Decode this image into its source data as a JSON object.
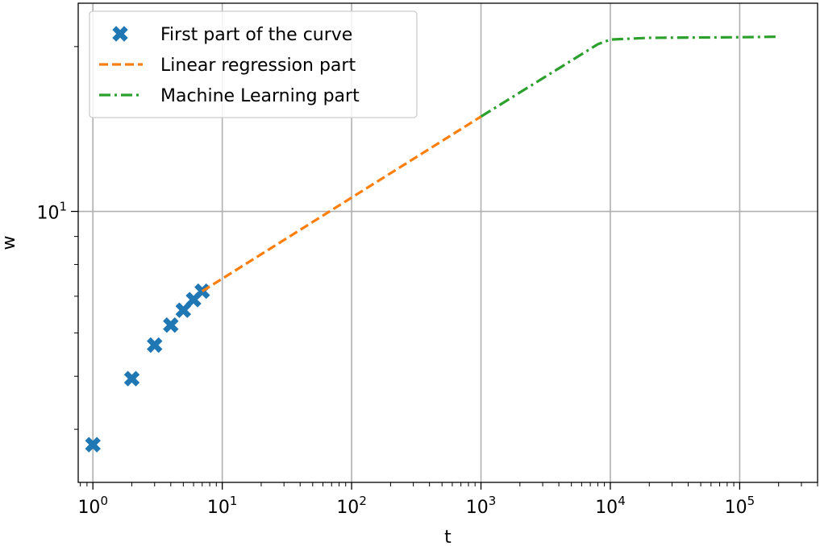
{
  "chart_data": {
    "type": "line",
    "title": "",
    "xlabel": "t",
    "ylabel": "w",
    "xscale": "log",
    "yscale": "log",
    "xlim": [
      0.77,
      400000
    ],
    "ylim": [
      3.2,
      24
    ],
    "grid": true,
    "legend_position": "top-left",
    "x_ticks": [
      {
        "base": "10",
        "exp": "0",
        "value": 1
      },
      {
        "base": "10",
        "exp": "1",
        "value": 10
      },
      {
        "base": "10",
        "exp": "2",
        "value": 100
      },
      {
        "base": "10",
        "exp": "3",
        "value": 1000
      },
      {
        "base": "10",
        "exp": "4",
        "value": 10000
      },
      {
        "base": "10",
        "exp": "5",
        "value": 100000
      }
    ],
    "y_ticks": [
      {
        "base": "10",
        "exp": "1",
        "value": 10
      }
    ],
    "series": [
      {
        "name": "First part of the curve",
        "kind": "scatter",
        "marker": "X",
        "color": "#1f77b4",
        "x": [
          1,
          2,
          3,
          4,
          5,
          6,
          7
        ],
        "y": [
          3.75,
          4.95,
          5.7,
          6.2,
          6.6,
          6.9,
          7.15
        ]
      },
      {
        "name": "Linear regression part",
        "kind": "line",
        "linestyle": "dashed",
        "color": "#ff7f0e",
        "x": [
          7,
          1000
        ],
        "y": [
          7.15,
          14.9
        ]
      },
      {
        "name": "Machine Learning part",
        "kind": "line",
        "linestyle": "dashdot",
        "color": "#2ca02c",
        "x": [
          1000,
          3000,
          8000,
          10000,
          20000,
          100000,
          200000
        ],
        "y": [
          14.9,
          17.5,
          20.2,
          20.6,
          20.75,
          20.8,
          20.85
        ]
      }
    ]
  }
}
